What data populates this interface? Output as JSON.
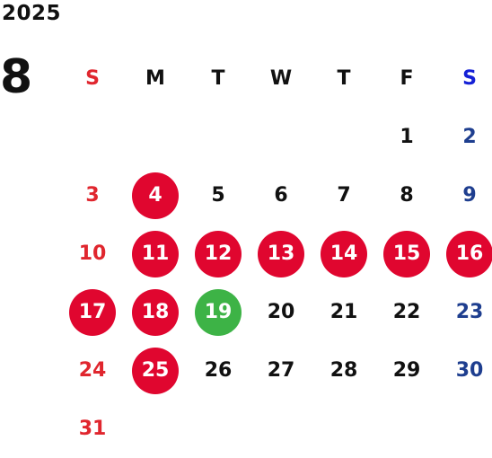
{
  "year": "2025",
  "month": "8",
  "weekdays": [
    "S",
    "M",
    "T",
    "W",
    "T",
    "F",
    "S"
  ],
  "first_weekday_index": 5,
  "days": [
    "1",
    "2",
    "3",
    "4",
    "5",
    "6",
    "7",
    "8",
    "9",
    "10",
    "11",
    "12",
    "13",
    "14",
    "15",
    "16",
    "17",
    "18",
    "19",
    "20",
    "21",
    "22",
    "23",
    "24",
    "25",
    "26",
    "27",
    "28",
    "29",
    "30",
    "31"
  ],
  "highlighted_days": [
    "4",
    "11",
    "12",
    "13",
    "14",
    "15",
    "16",
    "17",
    "18",
    "25"
  ],
  "today": "19",
  "colors": {
    "sunday": "#e0262e",
    "saturday": "#1e3e8f",
    "saturday_header": "#1420d6",
    "highlight": "#e0062f",
    "today": "#3db346",
    "text": "#111111"
  }
}
